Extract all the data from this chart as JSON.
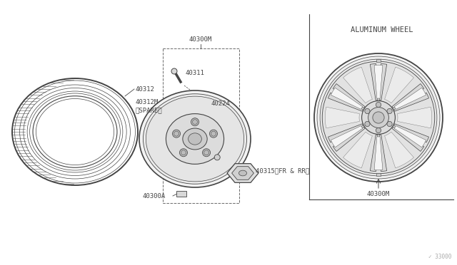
{
  "bg_color": "#ffffff",
  "line_color": "#444444",
  "light_line": "#888888",
  "fill_light": "#f0f0f0",
  "fill_mid": "#e0e0e0",
  "parts": {
    "tire_label": "40312",
    "tire_spare_label": "40312M\n〈SPARE〉",
    "wheel_top": "40300M",
    "valve": "40311",
    "valve_stem": "40224",
    "lug_nut": "40315（FR & RR）",
    "wheel_base": "40300A",
    "alum_wheel_label": "40300M",
    "alum_wheel_title": "ALUMINUM WHEEL"
  },
  "font_size_label": 6.5,
  "font_size_title": 7.5
}
